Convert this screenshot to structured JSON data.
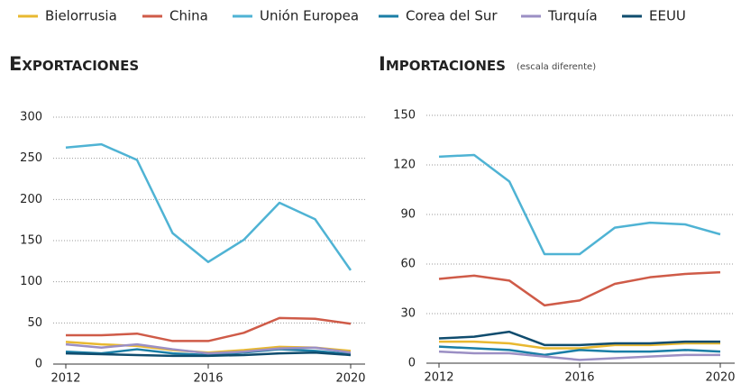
{
  "chart_data": [
    {
      "type": "line",
      "title": "Exportaciones",
      "x": [
        2012,
        2013,
        2014,
        2015,
        2016,
        2017,
        2018,
        2019,
        2020
      ],
      "xlim": [
        2012,
        2020
      ],
      "xticks": [
        2012,
        2016,
        2020
      ],
      "ylim": [
        0,
        300
      ],
      "yticks": [
        0,
        50,
        100,
        150,
        200,
        250,
        300
      ],
      "grid": true,
      "series": [
        {
          "name": "Bielorrusia",
          "color": "#e8b830",
          "values": [
            27,
            24,
            22,
            17,
            14,
            17,
            21,
            20,
            16
          ]
        },
        {
          "name": "China",
          "color": "#cf5b48",
          "values": [
            35,
            35,
            37,
            28,
            28,
            38,
            56,
            55,
            49
          ]
        },
        {
          "name": "Unión Europea",
          "color": "#4fb3d4",
          "values": [
            263,
            267,
            248,
            159,
            124,
            151,
            196,
            176,
            114
          ]
        },
        {
          "name": "Corea del Sur",
          "color": "#1a7ea6",
          "values": [
            15,
            13,
            18,
            13,
            11,
            14,
            18,
            16,
            12
          ]
        },
        {
          "name": "Turquía",
          "color": "#9b8fc4",
          "values": [
            24,
            20,
            24,
            18,
            13,
            15,
            19,
            20,
            14
          ]
        },
        {
          "name": "EEUU",
          "color": "#0f4c6e",
          "values": [
            13,
            12,
            11,
            10,
            10,
            11,
            13,
            14,
            11
          ]
        }
      ]
    },
    {
      "type": "line",
      "title": "Importaciones",
      "subtitle": "(escala diferente)",
      "x": [
        2012,
        2013,
        2014,
        2015,
        2016,
        2017,
        2018,
        2019,
        2020
      ],
      "xlim": [
        2012,
        2020
      ],
      "xticks": [
        2012,
        2016,
        2020
      ],
      "ylim": [
        0,
        150
      ],
      "yticks": [
        0,
        30,
        60,
        90,
        120,
        150
      ],
      "grid": true,
      "series": [
        {
          "color": "#e8b830",
          "values": [
            13,
            13,
            12,
            9,
            9,
            11,
            11,
            12,
            12
          ]
        },
        {
          "color": "#cf5b48",
          "values": [
            51,
            53,
            50,
            35,
            38,
            48,
            52,
            54,
            55
          ]
        },
        {
          "color": "#4fb3d4",
          "values": [
            125,
            126,
            110,
            66,
            66,
            82,
            85,
            84,
            78
          ]
        },
        {
          "color": "#1a7ea6",
          "values": [
            10,
            9,
            8,
            5,
            8,
            7,
            7,
            8,
            7
          ]
        },
        {
          "color": "#9b8fc4",
          "values": [
            7,
            6,
            6,
            4,
            2,
            3,
            4,
            5,
            5
          ]
        },
        {
          "color": "#0f4c6e",
          "values": [
            15,
            16,
            19,
            11,
            11,
            12,
            12,
            13,
            13
          ]
        }
      ]
    }
  ]
}
